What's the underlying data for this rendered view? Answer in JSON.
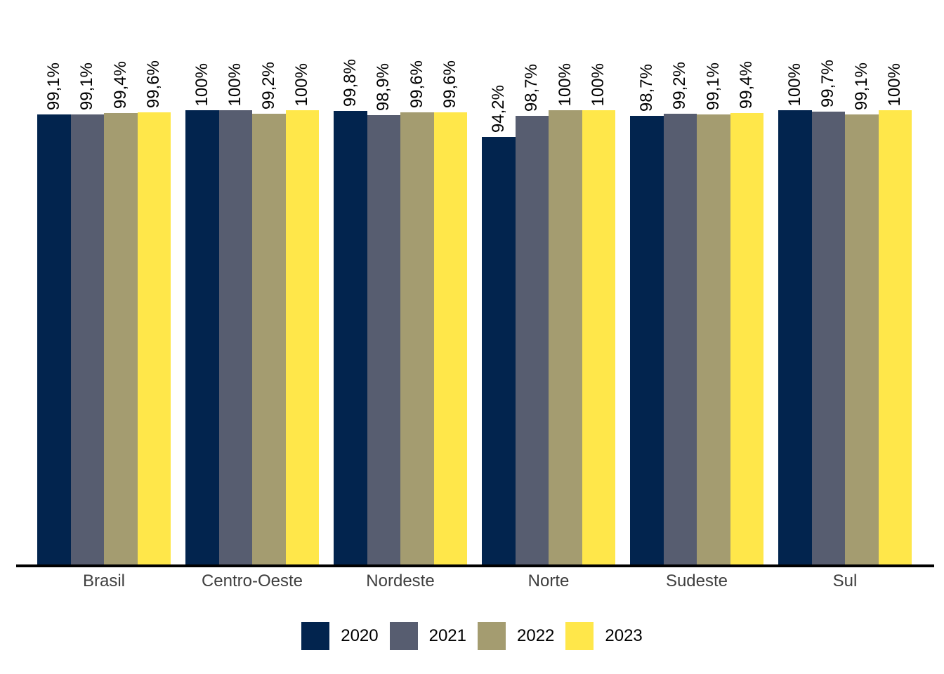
{
  "chart_data": {
    "type": "bar",
    "title": "",
    "xlabel": "",
    "ylabel": "",
    "ylim": [
      0,
      100
    ],
    "grid": false,
    "legend_position": "bottom-center",
    "value_label_rotation": -90,
    "value_label_decimal_separator": ",",
    "categories": [
      "Brasil",
      "Centro-Oeste",
      "Nordeste",
      "Norte",
      "Sudeste",
      "Sul"
    ],
    "series": [
      {
        "name": "2020",
        "color": "#02244E",
        "values": [
          99.1,
          100,
          99.8,
          94.2,
          98.7,
          100
        ],
        "labels": [
          "99,1%",
          "100%",
          "99,8%",
          "94,2%",
          "98,7%",
          "100%"
        ]
      },
      {
        "name": "2021",
        "color": "#575D70",
        "values": [
          99.1,
          100,
          98.9,
          98.7,
          99.2,
          99.7
        ],
        "labels": [
          "99,1%",
          "100%",
          "98,9%",
          "98,7%",
          "99,2%",
          "99,7%"
        ]
      },
      {
        "name": "2022",
        "color": "#A49C70",
        "values": [
          99.4,
          99.2,
          99.6,
          100,
          99.1,
          99.1
        ],
        "labels": [
          "99,4%",
          "99,2%",
          "99,6%",
          "100%",
          "99,1%",
          "99,1%"
        ]
      },
      {
        "name": "2023",
        "color": "#FFE74A",
        "values": [
          99.6,
          100,
          99.6,
          100,
          99.4,
          100
        ],
        "labels": [
          "99,6%",
          "100%",
          "99,6%",
          "100%",
          "99,4%",
          "100%"
        ]
      }
    ],
    "colors": {
      "axis_line": "#000000",
      "value_label": "#000000",
      "category_label": "#3f3f3f",
      "legend_label": "#000000",
      "background": "#ffffff"
    }
  }
}
